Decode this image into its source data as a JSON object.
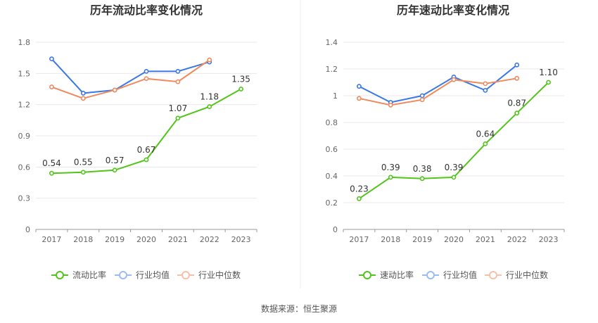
{
  "source": "数据来源：恒生聚源",
  "colors": {
    "company": "#52c41a",
    "avg": "#3b78e7",
    "median": "#f08a5d",
    "legend_avg": "#9bbcf2",
    "legend_median": "#f6c1a8"
  },
  "chart_data": [
    {
      "type": "line",
      "title": "历年流动比率变化情况",
      "categories": [
        "2017",
        "2018",
        "2019",
        "2020",
        "2021",
        "2022",
        "2023"
      ],
      "y_ticks": [
        "0",
        "0.3",
        "0.6",
        "0.9",
        "1.2",
        "1.5",
        "1.8"
      ],
      "ylim": [
        0,
        1.8
      ],
      "grid": true,
      "legend_position": "bottom",
      "series": [
        {
          "name": "流动比率",
          "values": [
            0.54,
            0.55,
            0.57,
            0.67,
            1.07,
            1.18,
            1.35
          ],
          "labels": [
            "0.54",
            "0.55",
            "0.57",
            "0.67",
            "1.07",
            "1.18",
            "1.35"
          ]
        },
        {
          "name": "行业均值",
          "values": [
            1.64,
            1.31,
            1.34,
            1.52,
            1.52,
            1.61,
            null
          ]
        },
        {
          "name": "行业中位数",
          "values": [
            1.37,
            1.26,
            1.34,
            1.45,
            1.42,
            1.63,
            null
          ]
        }
      ]
    },
    {
      "type": "line",
      "title": "历年速动比率变化情况",
      "categories": [
        "2017",
        "2018",
        "2019",
        "2020",
        "2021",
        "2022",
        "2023"
      ],
      "y_ticks": [
        "0",
        "0.2",
        "0.4",
        "0.6",
        "0.8",
        "1",
        "1.2",
        "1.4"
      ],
      "ylim": [
        0,
        1.4
      ],
      "grid": true,
      "legend_position": "bottom",
      "series": [
        {
          "name": "速动比率",
          "values": [
            0.23,
            0.39,
            0.38,
            0.39,
            0.64,
            0.87,
            1.1
          ],
          "labels": [
            "0.23",
            "0.39",
            "0.38",
            "0.39",
            "0.64",
            "0.87",
            "1.10"
          ]
        },
        {
          "name": "行业均值",
          "values": [
            1.07,
            0.95,
            1.0,
            1.14,
            1.04,
            1.23,
            null
          ]
        },
        {
          "name": "行业中位数",
          "values": [
            0.98,
            0.93,
            0.97,
            1.12,
            1.09,
            1.13,
            null
          ]
        }
      ]
    }
  ]
}
